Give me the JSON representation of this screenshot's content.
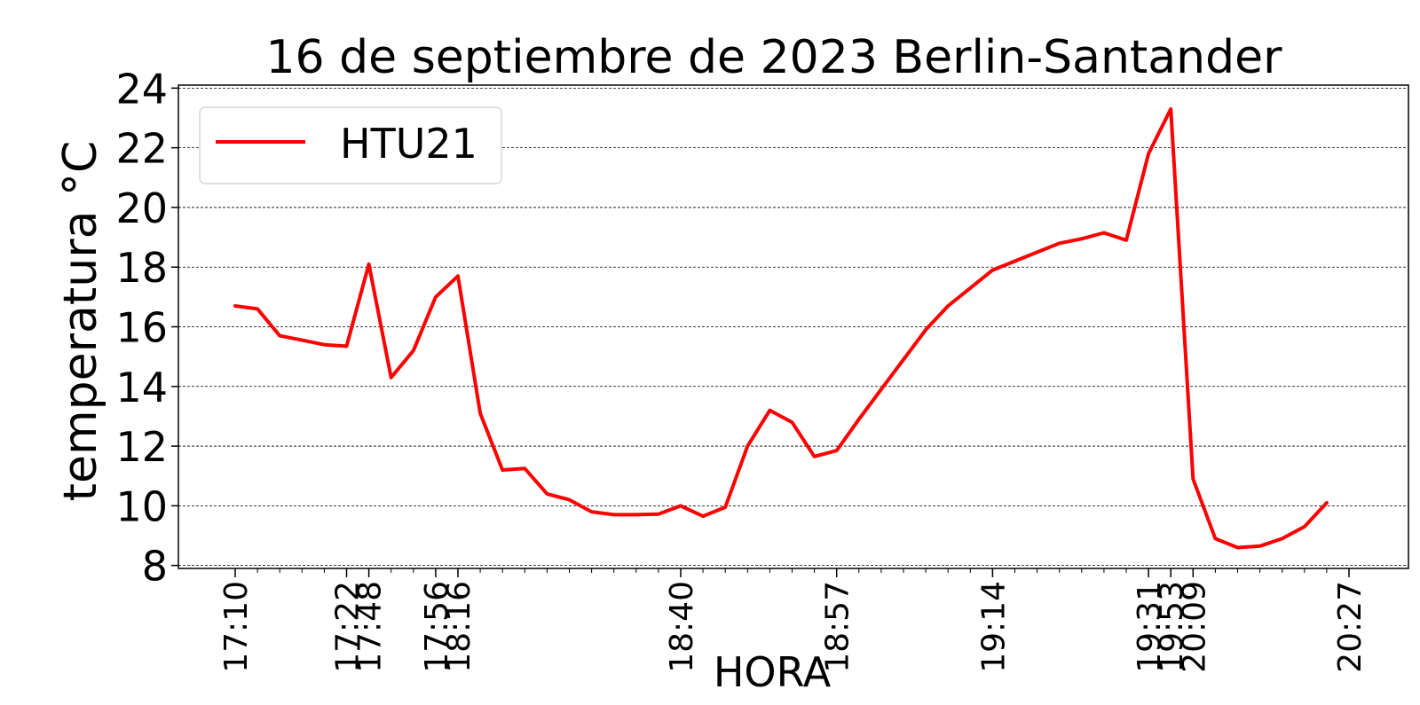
{
  "chart_data": {
    "type": "line",
    "title": "16 de septiembre de 2023 Berlin-Santander",
    "xlabel": "HORA",
    "ylabel": "temperatura °C",
    "ylim": [
      7.9,
      24.1
    ],
    "yticks": [
      8,
      10,
      12,
      14,
      16,
      18,
      20,
      22,
      24
    ],
    "grid": "horizontal dashed",
    "legend_position": "top-left",
    "x_tick_labels": [
      {
        "index": 0,
        "label": "17:10"
      },
      {
        "index": 5,
        "label": "17:22"
      },
      {
        "index": 6,
        "label": "17:48"
      },
      {
        "index": 9,
        "label": "17:56"
      },
      {
        "index": 10,
        "label": "18:16"
      },
      {
        "index": 20,
        "label": "18:40"
      },
      {
        "index": 27,
        "label": "18:57"
      },
      {
        "index": 34,
        "label": "19:14"
      },
      {
        "index": 41,
        "label": "19:31"
      },
      {
        "index": 42,
        "label": "19:53"
      },
      {
        "index": 43,
        "label": "20:09"
      },
      {
        "index": 50,
        "label": "20:27"
      }
    ],
    "series": [
      {
        "name": "HTU21",
        "color": "#ff0000",
        "values": [
          16.7,
          16.6,
          15.7,
          15.55,
          15.4,
          15.35,
          18.1,
          14.3,
          15.2,
          17.0,
          17.7,
          13.1,
          11.2,
          11.25,
          10.4,
          10.2,
          9.8,
          9.7,
          9.7,
          9.72,
          10.0,
          9.65,
          9.95,
          12.0,
          13.2,
          12.8,
          11.65,
          11.85,
          12.9,
          13.9,
          14.9,
          15.9,
          16.7,
          17.3,
          17.9,
          18.2,
          18.5,
          18.8,
          18.95,
          19.15,
          18.9,
          21.8,
          23.3,
          10.9,
          8.9,
          8.6,
          8.65,
          8.9,
          9.3,
          10.1
        ]
      }
    ]
  }
}
